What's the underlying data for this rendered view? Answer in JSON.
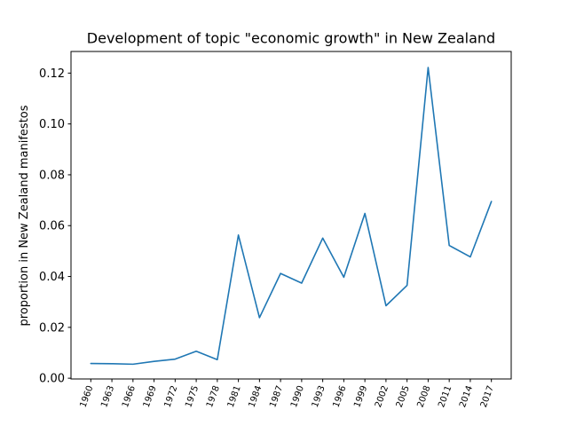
{
  "chart_data": {
    "type": "line",
    "title": "Development of topic \"economic growth\" in New Zealand",
    "xlabel": "",
    "ylabel": "proportion in New Zealand manifestos",
    "categories": [
      "1960",
      "1963",
      "1966",
      "1969",
      "1972",
      "1975",
      "1978",
      "1981",
      "1984",
      "1987",
      "1990",
      "1993",
      "1996",
      "1999",
      "2002",
      "2005",
      "2008",
      "2011",
      "2014",
      "2017"
    ],
    "series": [
      {
        "values": [
          0.0058,
          0.0057,
          0.0055,
          0.0066,
          0.0075,
          0.0106,
          0.0073,
          0.0563,
          0.0238,
          0.0412,
          0.0374,
          0.0551,
          0.0397,
          0.0648,
          0.0285,
          0.0365,
          0.1222,
          0.0522,
          0.0477,
          0.0695
        ],
        "color": "#1f77b4"
      }
    ],
    "yticks": [
      "0.00",
      "0.02",
      "0.04",
      "0.06",
      "0.08",
      "0.10",
      "0.12"
    ],
    "ylim": [
      -0.0003,
      0.1285
    ],
    "grid": false
  }
}
